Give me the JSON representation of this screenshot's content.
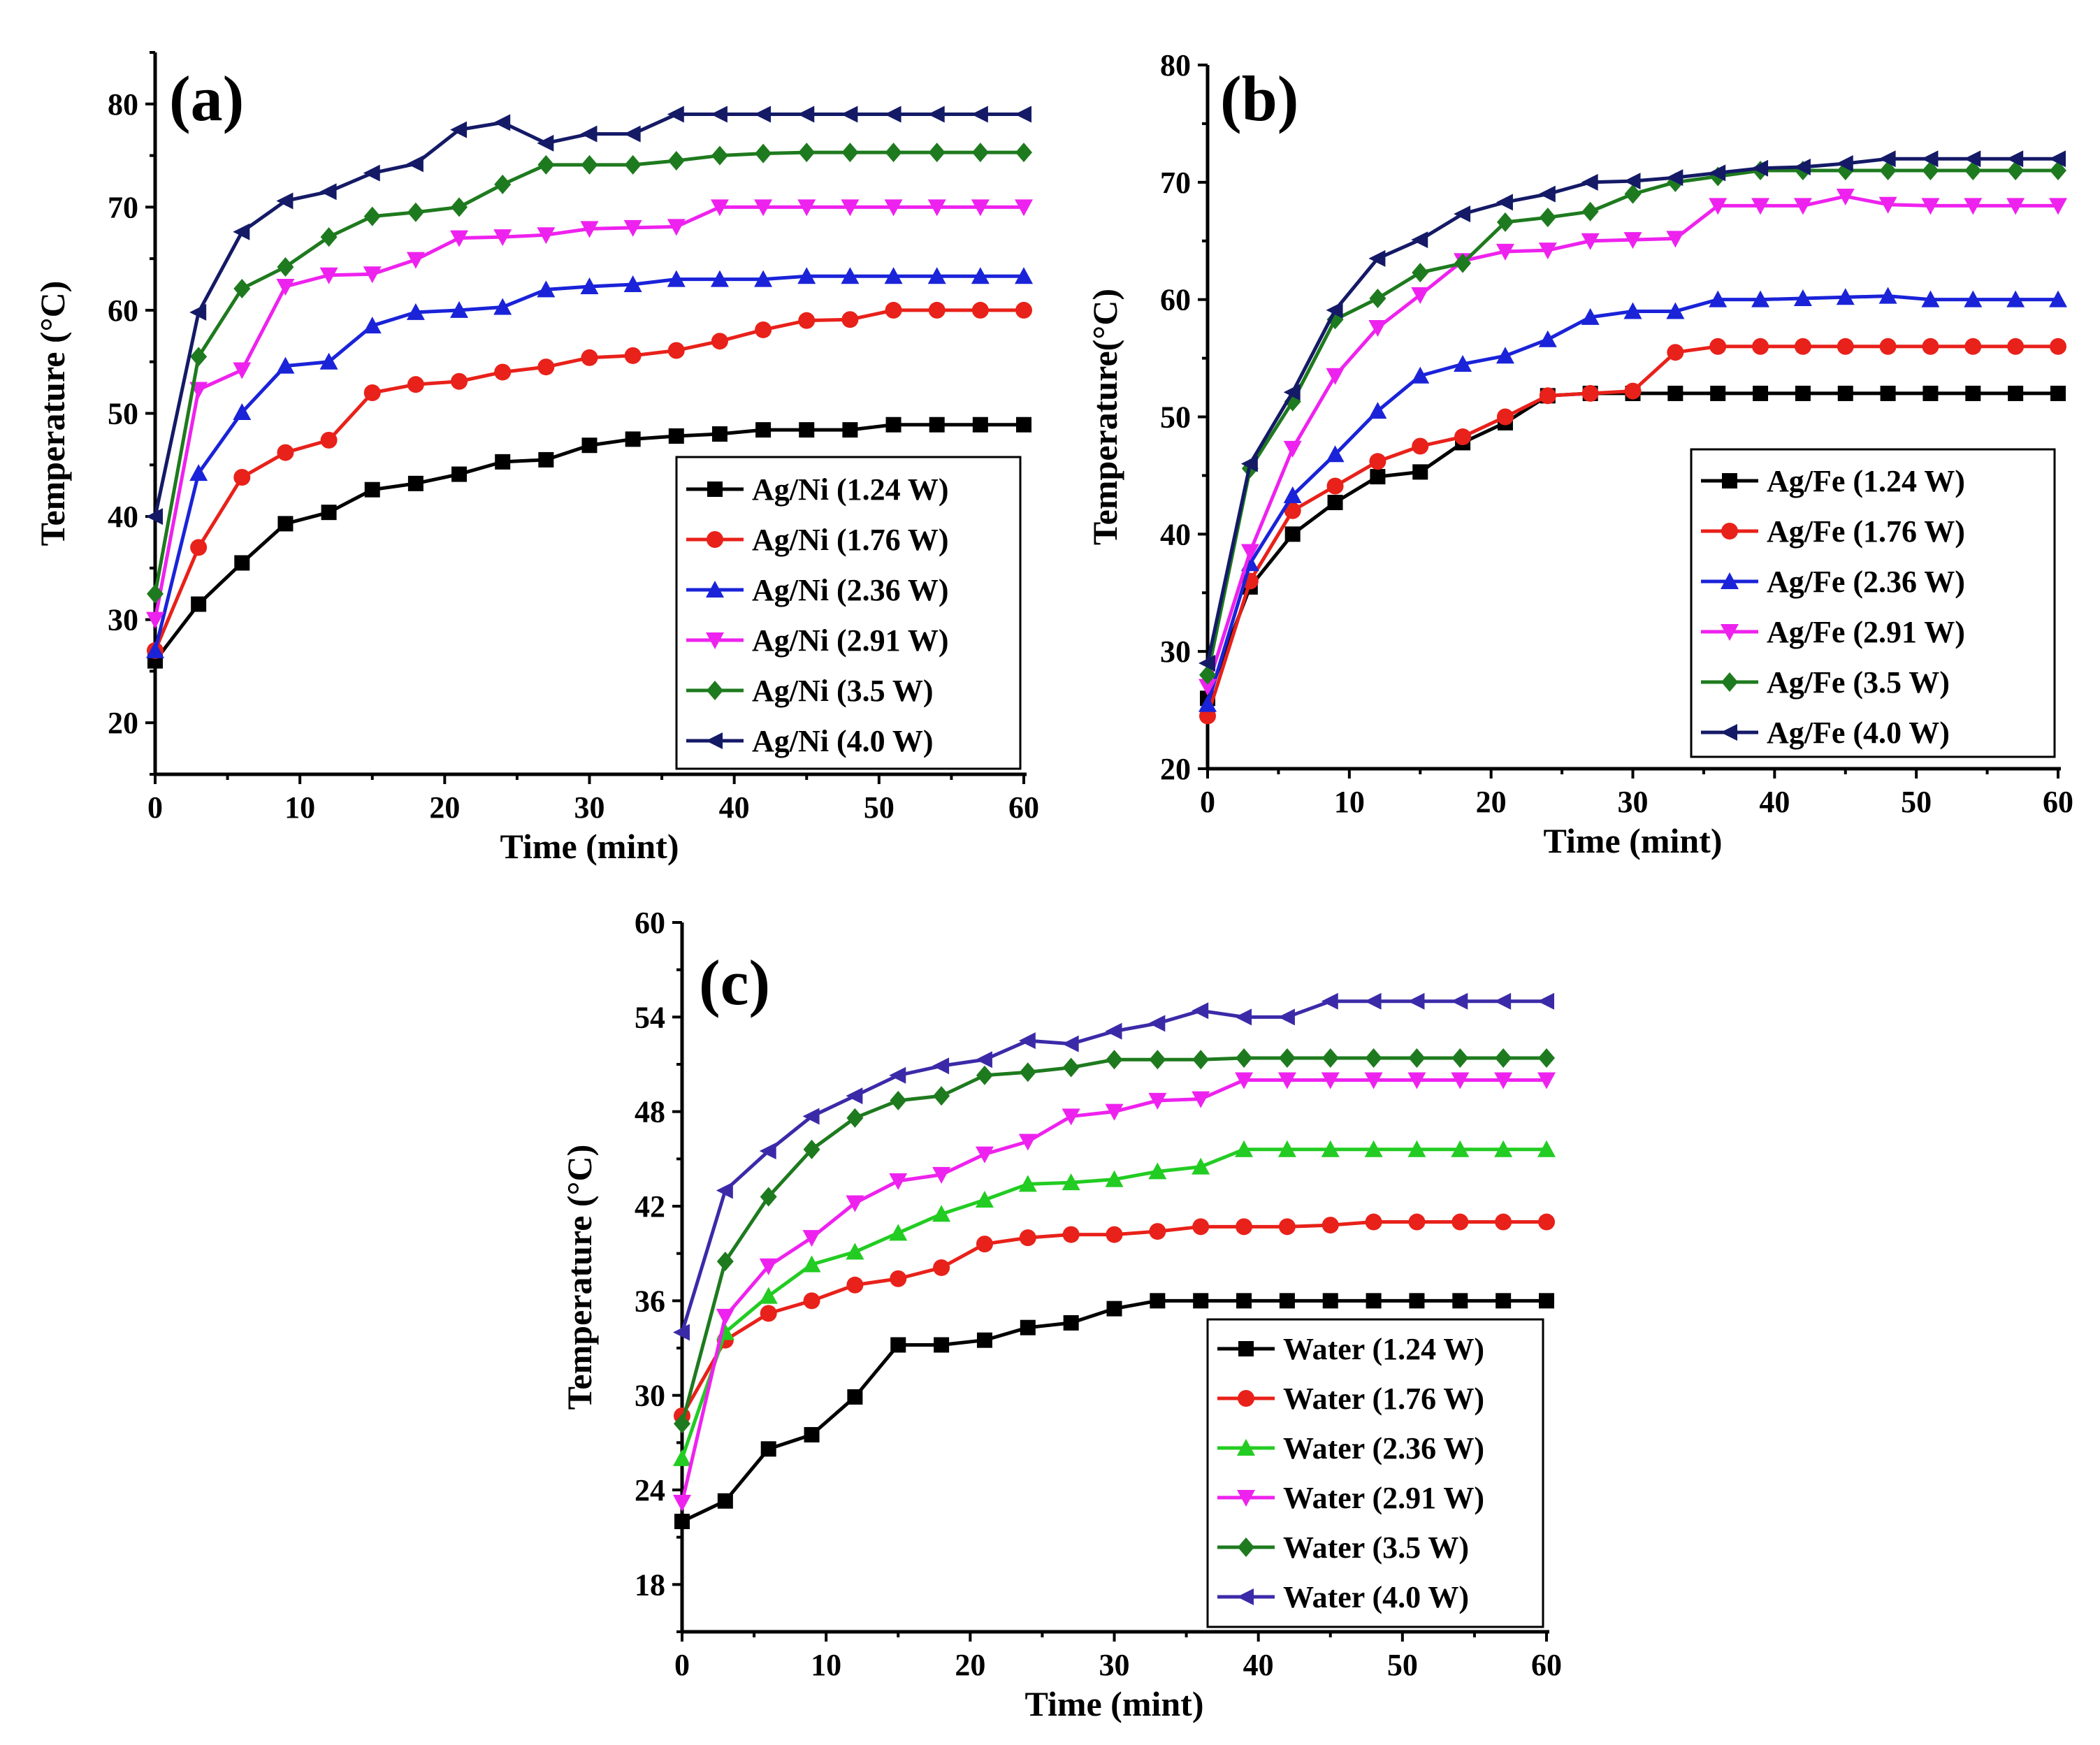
{
  "chart_data": [
    {
      "type": "line",
      "panel_label": "(a)",
      "xlabel": "Time (mint)",
      "ylabel": "Temperature (°C)",
      "xlim": [
        0,
        60
      ],
      "ylim": [
        15,
        85
      ],
      "xticks": [
        0,
        10,
        20,
        30,
        40,
        50,
        60
      ],
      "yticks": [
        20,
        30,
        40,
        50,
        60,
        70,
        80
      ],
      "legend_position": "bottom-right",
      "x": [
        0,
        3,
        6,
        9,
        12,
        15,
        18,
        21,
        24,
        27,
        30,
        33,
        36,
        39,
        42,
        45,
        48,
        51,
        54,
        57,
        60
      ],
      "series": [
        {
          "name": "Ag/Ni (1.24 W)",
          "color": "#000000",
          "marker": "square",
          "values": [
            26,
            31.5,
            35.5,
            39.3,
            40.4,
            42.6,
            43.2,
            44.1,
            45.3,
            45.5,
            46.9,
            47.5,
            47.8,
            48.0,
            48.4,
            48.4,
            48.4,
            48.9,
            48.9,
            48.9,
            48.9
          ]
        },
        {
          "name": "Ag/Ni (1.76 W)",
          "color": "#e8211a",
          "marker": "circle",
          "values": [
            27,
            37,
            43.8,
            46.2,
            47.4,
            52,
            52.8,
            53.1,
            54,
            54.5,
            55.4,
            55.6,
            56.1,
            57,
            58.1,
            59,
            59.1,
            60,
            60,
            60,
            60
          ]
        },
        {
          "name": "Ag/Ni (2.36 W)",
          "color": "#1a23d8",
          "marker": "triangle-up",
          "values": [
            27,
            44.2,
            50.1,
            54.6,
            55,
            58.5,
            59.8,
            60,
            60.3,
            62,
            62.3,
            62.5,
            63,
            63,
            63,
            63.3,
            63.3,
            63.3,
            63.3,
            63.3,
            63.3
          ]
        },
        {
          "name": "Ag/Ni (2.91 W)",
          "color": "#ee22ee",
          "marker": "triangle-down",
          "values": [
            30,
            52.3,
            54.2,
            62.3,
            63.4,
            63.5,
            64.9,
            67,
            67.1,
            67.3,
            67.9,
            68,
            68.1,
            70,
            70,
            70,
            70,
            70,
            70,
            70,
            70
          ]
        },
        {
          "name": "Ag/Ni (3.5 W)",
          "color": "#1e7a1e",
          "marker": "diamond",
          "values": [
            32.5,
            55.5,
            62.1,
            64.2,
            67.1,
            69.1,
            69.5,
            70,
            72.2,
            74.1,
            74.1,
            74.1,
            74.5,
            75,
            75.2,
            75.3,
            75.3,
            75.3,
            75.3,
            75.3,
            75.3
          ]
        },
        {
          "name": "Ag/Ni (4.0 W)",
          "color": "#141a66",
          "marker": "triangle-left",
          "values": [
            40,
            59.8,
            67.6,
            70.6,
            71.5,
            73.3,
            74.2,
            77.5,
            78.2,
            76.2,
            77.1,
            77.1,
            79,
            79,
            79,
            79,
            79,
            79,
            79,
            79,
            79
          ]
        }
      ]
    },
    {
      "type": "line",
      "panel_label": "(b)",
      "xlabel": "Time (mint)",
      "ylabel": "Temperature(°C)",
      "xlim": [
        0,
        60
      ],
      "ylim": [
        20,
        80
      ],
      "xticks": [
        0,
        10,
        20,
        30,
        40,
        50,
        60
      ],
      "yticks": [
        20,
        30,
        40,
        50,
        60,
        70,
        80
      ],
      "legend_position": "bottom-right",
      "x": [
        0,
        3,
        6,
        9,
        12,
        15,
        18,
        21,
        24,
        27,
        30,
        33,
        36,
        39,
        42,
        45,
        48,
        51,
        54,
        57,
        60
      ],
      "series": [
        {
          "name": "Ag/Fe  (1.24 W)",
          "color": "#000000",
          "marker": "square",
          "values": [
            26,
            35.5,
            40,
            42.7,
            44.9,
            45.3,
            47.8,
            49.5,
            51.8,
            52,
            52,
            52,
            52,
            52,
            52,
            52,
            52,
            52,
            52,
            52,
            52
          ]
        },
        {
          "name": "Ag/Fe  (1.76 W)",
          "color": "#e8211a",
          "marker": "circle",
          "values": [
            24.5,
            36,
            42,
            44.1,
            46.2,
            47.5,
            48.3,
            50,
            51.8,
            52,
            52.2,
            55.5,
            56,
            56,
            56,
            56,
            56,
            56,
            56,
            56,
            56
          ]
        },
        {
          "name": "Ag/Fe  (2.36 W)",
          "color": "#1a23d8",
          "marker": "triangle-up",
          "values": [
            25.5,
            37.5,
            43.3,
            46.8,
            50.5,
            53.5,
            54.5,
            55.2,
            56.6,
            58.5,
            59,
            59,
            60,
            60,
            60.1,
            60.2,
            60.3,
            60,
            60,
            60,
            60
          ]
        },
        {
          "name": "Ag/Fe  (2.91 W)",
          "color": "#ee22ee",
          "marker": "triangle-down",
          "values": [
            27,
            38.5,
            47.3,
            53.5,
            57.6,
            60.4,
            63.3,
            64.1,
            64.2,
            65,
            65.1,
            65.2,
            68,
            68,
            68,
            68.8,
            68.1,
            68,
            68,
            68,
            68
          ]
        },
        {
          "name": "Ag/Fe  (3.5 W)",
          "color": "#1e7a1e",
          "marker": "diamond",
          "values": [
            28,
            45.6,
            51.3,
            58.3,
            60.1,
            62.3,
            63.1,
            66.6,
            67,
            67.5,
            69,
            70,
            70.5,
            71,
            71,
            71,
            71,
            71,
            71,
            71,
            71
          ]
        },
        {
          "name": "Ag/Fe  (4.0 W)",
          "color": "#141a66",
          "marker": "triangle-left",
          "values": [
            29,
            46,
            52.1,
            59.1,
            63.5,
            65.1,
            67.3,
            68.3,
            69,
            70,
            70.1,
            70.4,
            70.8,
            71.2,
            71.3,
            71.6,
            72,
            72,
            72,
            72,
            72
          ]
        }
      ]
    },
    {
      "type": "line",
      "panel_label": "(c)",
      "xlabel": "Time (mint)",
      "ylabel": "Temperature (°C)",
      "xlim": [
        0,
        60
      ],
      "ylim": [
        15,
        60
      ],
      "xticks": [
        0,
        10,
        20,
        30,
        40,
        50,
        60
      ],
      "yticks": [
        18,
        24,
        30,
        36,
        42,
        48,
        54,
        60
      ],
      "legend_position": "bottom-right",
      "x": [
        0,
        3,
        6,
        9,
        12,
        15,
        18,
        21,
        24,
        27,
        30,
        33,
        36,
        39,
        42,
        45,
        48,
        51,
        54,
        57,
        60
      ],
      "series": [
        {
          "name": "Water (1.24 W)",
          "color": "#000000",
          "marker": "square",
          "values": [
            22,
            23.3,
            26.6,
            27.5,
            29.9,
            33.2,
            33.2,
            33.5,
            34.3,
            34.6,
            35.5,
            36,
            36,
            36,
            36,
            36,
            36,
            36,
            36,
            36,
            36
          ]
        },
        {
          "name": "Water (1.76 W)",
          "color": "#e8211a",
          "marker": "circle",
          "values": [
            28.7,
            33.5,
            35.2,
            36,
            37,
            37.4,
            38.1,
            39.6,
            40,
            40.2,
            40.2,
            40.4,
            40.7,
            40.7,
            40.7,
            40.8,
            41,
            41,
            41,
            41,
            41
          ]
        },
        {
          "name": "Water (2.36 W)",
          "color": "#22cc22",
          "marker": "triangle-up",
          "values": [
            26,
            34,
            36.3,
            38.3,
            39.1,
            40.3,
            41.5,
            42.4,
            43.4,
            43.5,
            43.7,
            44.2,
            44.5,
            45.6,
            45.6,
            45.6,
            45.6,
            45.6,
            45.6,
            45.6,
            45.6
          ]
        },
        {
          "name": "Water (2.91 W)",
          "color": "#ee22ee",
          "marker": "triangle-down",
          "values": [
            23.2,
            35,
            38.2,
            40,
            42.2,
            43.6,
            44,
            45.3,
            46.1,
            47.7,
            48,
            48.7,
            48.8,
            50,
            50,
            50,
            50,
            50,
            50,
            50,
            50
          ]
        },
        {
          "name": "Water (3.5 W)",
          "color": "#1e7a1e",
          "marker": "diamond",
          "values": [
            28.2,
            38.5,
            42.6,
            45.6,
            47.6,
            48.7,
            49,
            50.3,
            50.5,
            50.8,
            51.3,
            51.3,
            51.3,
            51.4,
            51.4,
            51.4,
            51.4,
            51.4,
            51.4,
            51.4,
            51.4
          ]
        },
        {
          "name": "Water (4.0 W)",
          "color": "#3b2aa8",
          "marker": "triangle-left",
          "values": [
            34,
            43,
            45.5,
            47.7,
            49,
            50.3,
            50.9,
            51.3,
            52.5,
            52.3,
            53.1,
            53.6,
            54.4,
            54,
            54,
            55,
            55,
            55,
            55,
            55,
            55
          ]
        }
      ]
    }
  ]
}
